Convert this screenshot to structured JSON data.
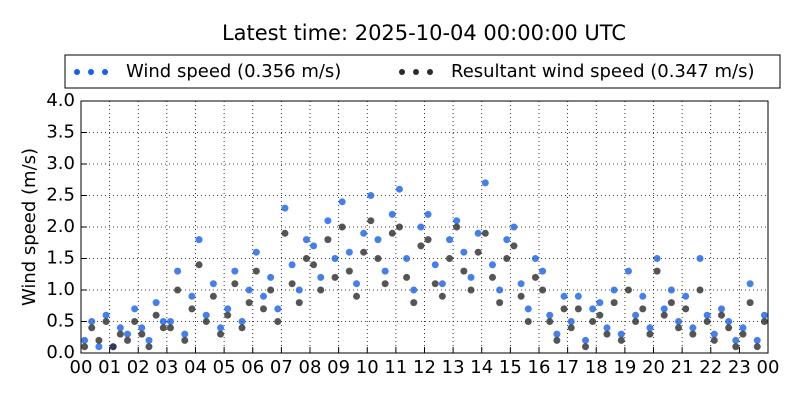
{
  "chart_data": {
    "type": "scatter",
    "title": "Latest time: 2025-10-04 00:00:00 UTC",
    "y_label": "Wind speed (m/s)",
    "x": [
      0.125,
      0.375,
      0.625,
      0.875,
      1.125,
      1.375,
      1.625,
      1.875,
      2.125,
      2.375,
      2.625,
      2.875,
      3.125,
      3.375,
      3.625,
      3.875,
      4.125,
      4.375,
      4.625,
      4.875,
      5.125,
      5.375,
      5.625,
      5.875,
      6.125,
      6.375,
      6.625,
      6.875,
      7.125,
      7.375,
      7.625,
      7.875,
      8.125,
      8.375,
      8.625,
      8.875,
      9.125,
      9.375,
      9.625,
      9.875,
      10.125,
      10.375,
      10.625,
      10.875,
      11.125,
      11.375,
      11.625,
      11.875,
      12.125,
      12.375,
      12.625,
      12.875,
      13.125,
      13.375,
      13.625,
      13.875,
      14.125,
      14.375,
      14.625,
      14.875,
      15.125,
      15.375,
      15.625,
      15.875,
      16.125,
      16.375,
      16.625,
      16.875,
      17.125,
      17.375,
      17.625,
      17.875,
      18.125,
      18.375,
      18.625,
      18.875,
      19.125,
      19.375,
      19.625,
      19.875,
      20.125,
      20.375,
      20.625,
      20.875,
      21.125,
      21.375,
      21.625,
      21.875,
      22.125,
      22.375,
      22.625,
      22.875,
      23.125,
      23.375,
      23.625,
      23.875
    ],
    "series": [
      {
        "name": "Wind speed (0.356 m/s)",
        "color": "#1560e8",
        "values": [
          0.2,
          0.5,
          0.1,
          0.6,
          0.1,
          0.4,
          0.3,
          0.7,
          0.4,
          0.2,
          0.8,
          0.5,
          0.5,
          1.3,
          0.3,
          0.9,
          1.8,
          0.6,
          1.1,
          0.4,
          0.7,
          1.3,
          0.5,
          1.0,
          1.6,
          0.9,
          1.2,
          0.7,
          2.3,
          1.4,
          1.0,
          1.8,
          1.7,
          1.2,
          2.1,
          1.5,
          2.4,
          1.6,
          1.1,
          1.9,
          2.5,
          1.8,
          1.3,
          2.2,
          2.6,
          1.5,
          1.0,
          2.0,
          2.2,
          1.4,
          1.1,
          1.8,
          2.1,
          1.6,
          1.2,
          1.9,
          2.7,
          1.4,
          1.0,
          1.8,
          2.0,
          1.1,
          0.7,
          1.5,
          1.3,
          0.6,
          0.3,
          0.9,
          0.5,
          0.9,
          0.2,
          0.7,
          0.8,
          0.4,
          1.0,
          0.3,
          1.3,
          0.6,
          0.9,
          0.4,
          1.5,
          0.7,
          1.0,
          0.5,
          0.9,
          0.4,
          1.5,
          0.6,
          0.3,
          0.7,
          0.5,
          0.2,
          0.4,
          1.1,
          0.2,
          0.6
        ]
      },
      {
        "name": "Resultant wind speed (0.347 m/s)",
        "color": "#2a2a2a",
        "values": [
          0.1,
          0.4,
          0.2,
          0.5,
          0.1,
          0.3,
          0.2,
          0.5,
          0.3,
          0.1,
          0.6,
          0.4,
          0.4,
          1.0,
          0.2,
          0.7,
          1.4,
          0.5,
          0.9,
          0.3,
          0.6,
          1.1,
          0.4,
          0.8,
          1.3,
          0.7,
          1.0,
          0.5,
          1.9,
          1.1,
          0.8,
          1.5,
          1.4,
          1.0,
          1.8,
          1.2,
          2.0,
          1.3,
          0.9,
          1.6,
          2.1,
          1.5,
          1.1,
          1.9,
          2.0,
          1.2,
          0.8,
          1.7,
          1.8,
          1.1,
          0.9,
          1.5,
          2.0,
          1.3,
          1.0,
          1.6,
          1.9,
          1.2,
          0.8,
          1.5,
          1.7,
          0.9,
          0.5,
          1.2,
          1.0,
          0.5,
          0.2,
          0.7,
          0.4,
          0.7,
          0.1,
          0.5,
          0.6,
          0.3,
          0.8,
          0.2,
          1.0,
          0.5,
          0.7,
          0.3,
          1.3,
          0.6,
          0.8,
          0.4,
          0.7,
          0.3,
          1.0,
          0.5,
          0.2,
          0.6,
          0.4,
          0.1,
          0.3,
          0.8,
          0.1,
          0.5
        ]
      }
    ],
    "xlim": [
      0,
      24
    ],
    "xticks": [
      {
        "value": 0,
        "label": "00"
      },
      {
        "value": 1,
        "label": "01"
      },
      {
        "value": 2,
        "label": "02"
      },
      {
        "value": 3,
        "label": "03"
      },
      {
        "value": 4,
        "label": "04"
      },
      {
        "value": 5,
        "label": "05"
      },
      {
        "value": 6,
        "label": "06"
      },
      {
        "value": 7,
        "label": "07"
      },
      {
        "value": 8,
        "label": "08"
      },
      {
        "value": 9,
        "label": "09"
      },
      {
        "value": 10,
        "label": "10"
      },
      {
        "value": 11,
        "label": "11"
      },
      {
        "value": 12,
        "label": "12"
      },
      {
        "value": 13,
        "label": "13"
      },
      {
        "value": 14,
        "label": "14"
      },
      {
        "value": 15,
        "label": "15"
      },
      {
        "value": 16,
        "label": "16"
      },
      {
        "value": 17,
        "label": "17"
      },
      {
        "value": 18,
        "label": "18"
      },
      {
        "value": 19,
        "label": "19"
      },
      {
        "value": 20,
        "label": "20"
      },
      {
        "value": 21,
        "label": "21"
      },
      {
        "value": 22,
        "label": "22"
      },
      {
        "value": 23,
        "label": "23"
      },
      {
        "value": 24,
        "label": "00"
      }
    ],
    "ylim": [
      0,
      4
    ],
    "yticks": [
      {
        "value": 0,
        "label": "0.0"
      },
      {
        "value": 0.5,
        "label": "0.5"
      },
      {
        "value": 1,
        "label": "1.0"
      },
      {
        "value": 1.5,
        "label": "1.5"
      },
      {
        "value": 2,
        "label": "2.0"
      },
      {
        "value": 2.5,
        "label": "2.5"
      },
      {
        "value": 3,
        "label": "3.0"
      },
      {
        "value": 3.5,
        "label": "3.5"
      },
      {
        "value": 4,
        "label": "4.0"
      }
    ],
    "grid": true,
    "legend": "top"
  }
}
